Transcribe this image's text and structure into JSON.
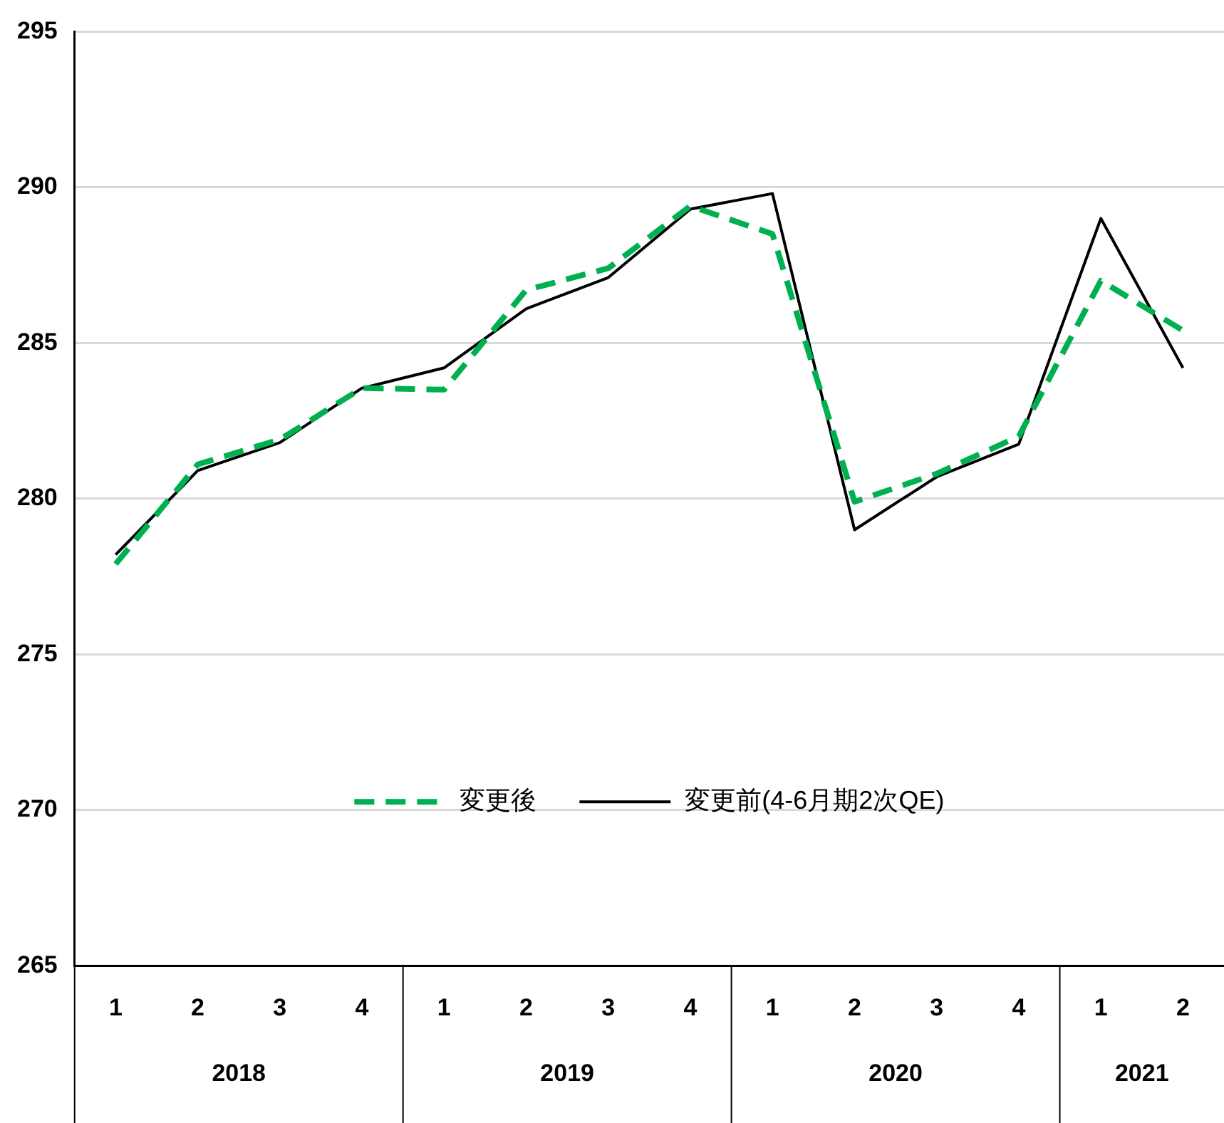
{
  "chart_data": {
    "type": "line",
    "categories": [
      "1",
      "2",
      "3",
      "4",
      "1",
      "2",
      "3",
      "4",
      "1",
      "2",
      "3",
      "4",
      "1",
      "2"
    ],
    "annotations": [
      "2018",
      "2019",
      "2020",
      "2021"
    ],
    "series": [
      {
        "name": "変更後",
        "color": "#00b050",
        "line_style": "dashed",
        "values": [
          277.9,
          281.1,
          281.9,
          283.55,
          283.5,
          286.7,
          287.4,
          289.4,
          288.5,
          279.9,
          280.8,
          282.0,
          287.0,
          285.4
        ]
      },
      {
        "name": "変更前(4-6月期2次QE)",
        "color": "#000000",
        "line_style": "solid",
        "values": [
          278.2,
          280.9,
          281.8,
          283.55,
          284.2,
          286.1,
          287.1,
          289.3,
          289.8,
          279.0,
          280.7,
          281.75,
          289.0,
          284.2
        ]
      }
    ],
    "ylim": [
      265,
      295
    ],
    "yticks": [
      265,
      270,
      275,
      280,
      285,
      290,
      295
    ],
    "grid": "y",
    "legend": "bottom",
    "marker": "none"
  }
}
